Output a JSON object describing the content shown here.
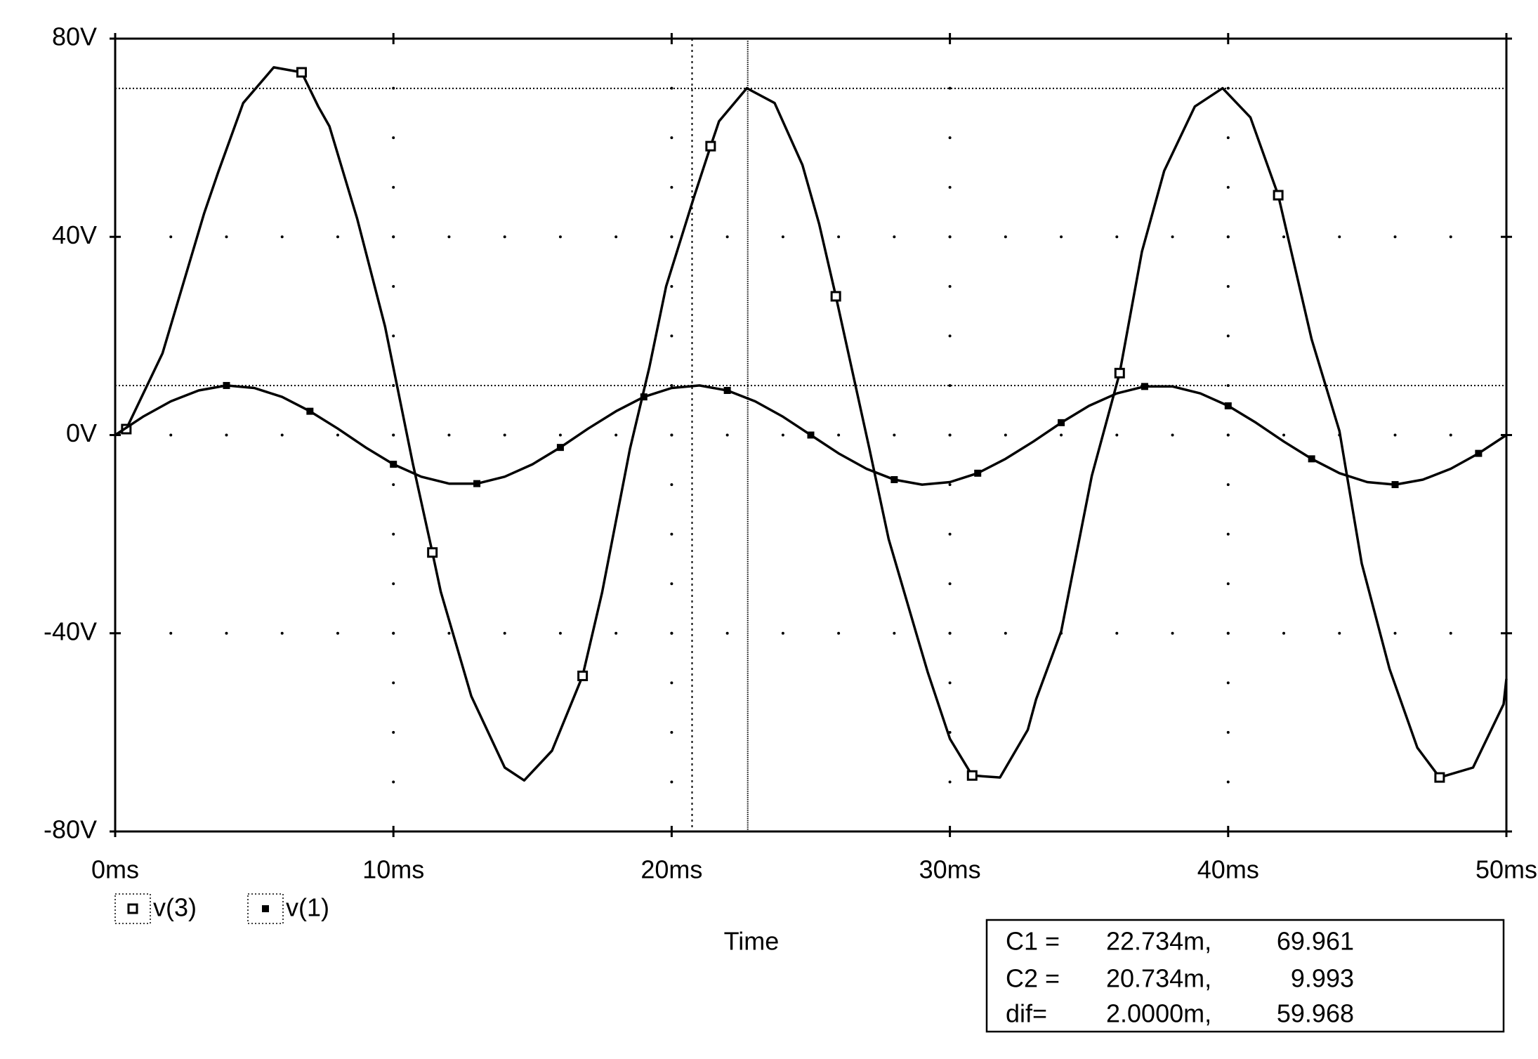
{
  "chart_data": {
    "type": "line",
    "x_label": "Time",
    "xlim": [
      0,
      50
    ],
    "xticks": [
      {
        "value": 0,
        "label": "0ms"
      },
      {
        "value": 10,
        "label": "10ms"
      },
      {
        "value": 20,
        "label": "20ms"
      },
      {
        "value": 30,
        "label": "30ms"
      },
      {
        "value": 40,
        "label": "40ms"
      },
      {
        "value": 50,
        "label": "50ms"
      }
    ],
    "ylim": [
      -80,
      80
    ],
    "yticks": [
      {
        "value": -80,
        "label": "-80V"
      },
      {
        "value": -40,
        "label": "-40V"
      },
      {
        "value": 0,
        "label": "0V"
      },
      {
        "value": 40,
        "label": "40V"
      },
      {
        "value": 80,
        "label": "80V"
      }
    ],
    "grid": true,
    "series": [
      {
        "name": "v(3)",
        "color": "#000000",
        "marker": "open-square",
        "x": [
          0,
          0.4,
          1.7,
          3.2,
          3.7,
          4.6,
          5.7,
          6.7,
          7.3,
          7.7,
          8.7,
          9.7,
          10.7,
          11.4,
          11.7,
          12.8,
          14.0,
          14.7,
          15.7,
          16.8,
          17.5,
          18.5,
          19.2,
          19.8,
          20.8,
          21.4,
          21.7,
          22.7,
          23.7,
          24.7,
          25.3,
          25.9,
          27.1,
          27.8,
          28.8,
          29.2,
          30.0,
          30.8,
          31.8,
          32.8,
          33.1,
          34.0,
          35.1,
          36.1,
          36.9,
          37.7,
          38.8,
          39.8,
          40.8,
          41.8,
          43.0,
          44.0,
          44.8,
          45.8,
          46.8,
          47.6,
          48.8,
          49.9,
          50
        ],
        "values": [
          0,
          1.2,
          16.5,
          44.8,
          53,
          67,
          74.2,
          73.2,
          66.3,
          62.3,
          43.6,
          21.9,
          -5.8,
          -23.7,
          -31.6,
          -52.7,
          -67.1,
          -69.7,
          -63.7,
          -48.6,
          -31.8,
          -2.8,
          13.7,
          30,
          48,
          58.3,
          63.3,
          70,
          67,
          54.5,
          42.6,
          28,
          -2.6,
          -21,
          -40.2,
          -47.8,
          -61.3,
          -68.7,
          -69.1,
          -59.5,
          -53.3,
          -39.6,
          -8.2,
          12.5,
          37,
          53.3,
          66.3,
          70,
          64.1,
          48.4,
          19.3,
          0.8,
          -25.9,
          -47.2,
          -63.1,
          -69.1,
          -67.1,
          -54.3,
          -49.2
        ]
      },
      {
        "name": "v(1)",
        "color": "#000000",
        "marker": "filled-square",
        "x": [
          0,
          1,
          2,
          3,
          4,
          5,
          6,
          7,
          8,
          9,
          10,
          11,
          12,
          13,
          14,
          15,
          16,
          17,
          18,
          19,
          20,
          21,
          22,
          23,
          24,
          25,
          26,
          27,
          28,
          29,
          30,
          31,
          32,
          33,
          34,
          35,
          36,
          37,
          38,
          39,
          40,
          41,
          42,
          43,
          44,
          45,
          46,
          47,
          48,
          49,
          50
        ],
        "values": [
          0,
          3.7,
          6.8,
          9.0,
          10.0,
          9.5,
          7.7,
          4.8,
          1.3,
          -2.5,
          -5.9,
          -8.4,
          -9.8,
          -9.8,
          -8.4,
          -5.9,
          -2.5,
          1.3,
          4.8,
          7.7,
          9.5,
          10.0,
          9.0,
          6.8,
          3.7,
          0,
          -3.7,
          -6.8,
          -9.0,
          -10.0,
          -9.5,
          -7.7,
          -4.8,
          -1.3,
          2.5,
          5.9,
          8.4,
          9.8,
          9.8,
          8.4,
          5.9,
          2.5,
          -1.3,
          -4.8,
          -7.7,
          -9.5,
          -10.0,
          -9.0,
          -6.8,
          -3.7,
          0
        ]
      }
    ],
    "cursors": [
      {
        "name": "C1 =",
        "x": {
          "value": 22.734,
          "label": "22.734m,"
        },
        "y": 69.961,
        "line": "solid"
      },
      {
        "name": "C2 =",
        "x": {
          "value": 20.734,
          "label": "20.734m,"
        },
        "y": 9.993,
        "line": "dotted"
      },
      {
        "name": "dif=",
        "x": {
          "value": 2.0,
          "label": "2.0000m,"
        },
        "y": 59.968
      }
    ]
  }
}
